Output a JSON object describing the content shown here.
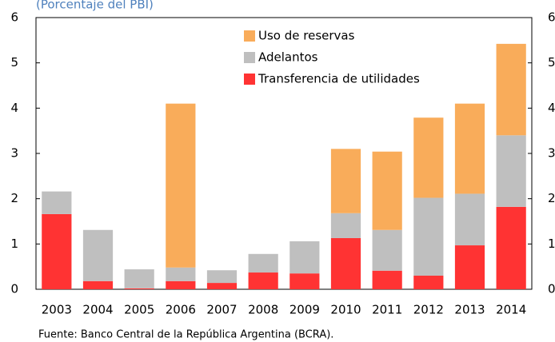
{
  "chart_data": {
    "type": "stacked_bar",
    "title": "(Porcentaje del PBI)",
    "categories": [
      "2003",
      "2004",
      "2005",
      "2006",
      "2007",
      "2008",
      "2009",
      "2010",
      "2011",
      "2012",
      "2013",
      "2014"
    ],
    "series": [
      {
        "name": "Transferencia de utilidades",
        "color": "#ff3333",
        "values": [
          1.66,
          0.18,
          0.02,
          0.18,
          0.14,
          0.37,
          0.35,
          1.13,
          0.41,
          0.3,
          0.97,
          1.82
        ]
      },
      {
        "name": "Adelantos",
        "color": "#bfbfbf",
        "values": [
          0.5,
          1.13,
          0.42,
          0.3,
          0.28,
          0.41,
          0.71,
          0.55,
          0.9,
          1.72,
          1.14,
          1.58
        ]
      },
      {
        "name": "Uso de reservas",
        "color": "#f9ac5a",
        "values": [
          0,
          0,
          0,
          3.62,
          0,
          0,
          0,
          1.42,
          1.73,
          1.77,
          1.99,
          2.02
        ]
      }
    ],
    "ylim": [
      0,
      6
    ],
    "yticks": [
      0,
      1,
      2,
      3,
      4,
      5,
      6
    ],
    "y2lim": [
      0,
      6
    ],
    "y2ticks": [
      0,
      1,
      2,
      3,
      4,
      5,
      6
    ],
    "source": "Fuente: Banco Central de la República Argentina (BCRA)."
  }
}
